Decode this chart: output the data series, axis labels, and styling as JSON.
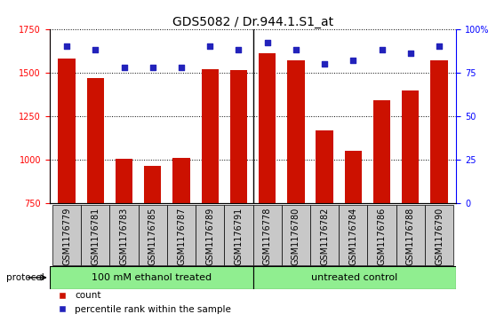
{
  "title": "GDS5082 / Dr.944.1.S1_at",
  "samples": [
    "GSM1176779",
    "GSM1176781",
    "GSM1176783",
    "GSM1176785",
    "GSM1176787",
    "GSM1176789",
    "GSM1176791",
    "GSM1176778",
    "GSM1176780",
    "GSM1176782",
    "GSM1176784",
    "GSM1176786",
    "GSM1176788",
    "GSM1176790"
  ],
  "counts": [
    1580,
    1470,
    1005,
    965,
    1010,
    1520,
    1515,
    1610,
    1570,
    1165,
    1050,
    1340,
    1395,
    1570
  ],
  "percentiles": [
    90,
    88,
    78,
    78,
    78,
    90,
    88,
    92,
    88,
    80,
    82,
    88,
    86,
    90
  ],
  "group1_label": "100 mM ethanol treated",
  "group2_label": "untreated control",
  "group1_count": 7,
  "group2_count": 7,
  "ylim_left": [
    750,
    1750
  ],
  "ylim_right": [
    0,
    100
  ],
  "yticks_left": [
    750,
    1000,
    1250,
    1500,
    1750
  ],
  "yticks_right": [
    0,
    25,
    50,
    75,
    100
  ],
  "bar_color": "#cc1100",
  "dot_color": "#2222bb",
  "group_bg": "#90ee90",
  "xlabel_area_bg": "#c8c8c8",
  "protocol_label": "protocol",
  "legend_count_label": "count",
  "legend_pct_label": "percentile rank within the sample",
  "title_fontsize": 10,
  "tick_fontsize": 7,
  "label_fontsize": 8
}
